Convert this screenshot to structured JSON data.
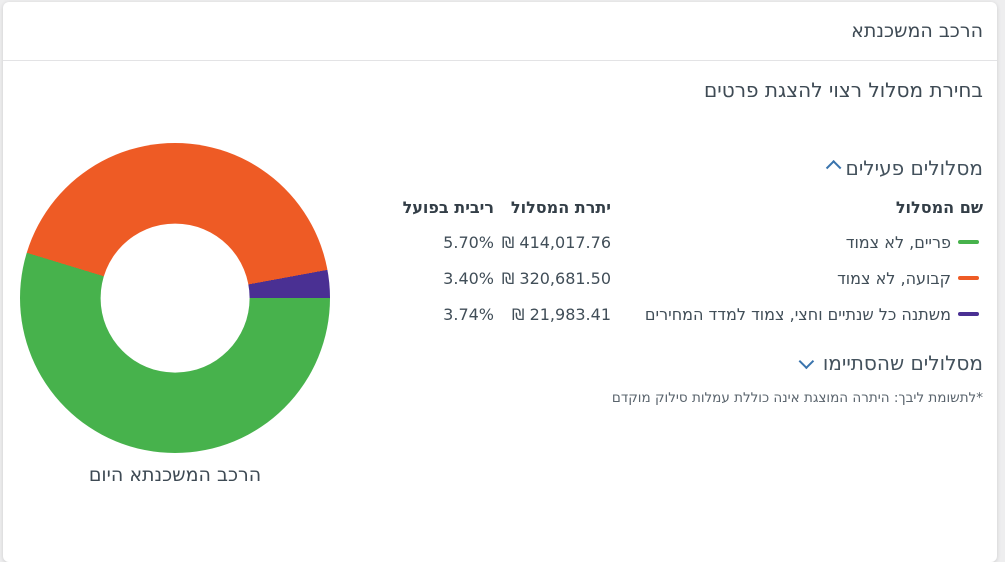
{
  "header": {
    "title": "הרכב המשכנתא"
  },
  "subtitle": "בחירת מסלול רצוי להצגת פרטים",
  "active_section": {
    "title": "מסלולים פעילים"
  },
  "ended_section": {
    "title": "מסלולים שהסתיימו"
  },
  "table": {
    "headers": {
      "name": "שם המסלול",
      "balance": "יתרת המסלול",
      "rate": "ריבית בפועל"
    },
    "rows": [
      {
        "name": "פריים, לא צמוד",
        "balance": "414,017.76",
        "currency": "₪",
        "rate": "5.70%",
        "color": "#47b24c"
      },
      {
        "name": "קבועה, לא צמוד",
        "balance": "320,681.50",
        "currency": "₪",
        "rate": "3.40%",
        "color": "#ee5b25"
      },
      {
        "name": "משתנה כל שנתיים וחצי, צמוד למדד המחירים",
        "balance": "21,983.41",
        "currency": "₪",
        "rate": "3.74%",
        "color": "#4a3093"
      }
    ]
  },
  "footnote": "*לתשומת ליבך: היתרה המוצגת אינה כוללת עמלות סילוק מוקדם",
  "chart_data": {
    "type": "pie",
    "donut": true,
    "title": "הרכב המשכנתא היום",
    "start_conic_deg": 90,
    "hole_ratio": 0.48,
    "segments": [
      {
        "label": "פריים, לא צמוד",
        "value": 414017.76,
        "percent": 54.7,
        "color": "#47b24c"
      },
      {
        "label": "קבועה, לא צמוד",
        "value": 320681.5,
        "percent": 42.4,
        "color": "#ee5b25"
      },
      {
        "label": "משתנה כל שנתיים וחצי, צמוד למדד המחירים",
        "value": 21983.41,
        "percent": 2.9,
        "color": "#4a3093"
      }
    ]
  }
}
